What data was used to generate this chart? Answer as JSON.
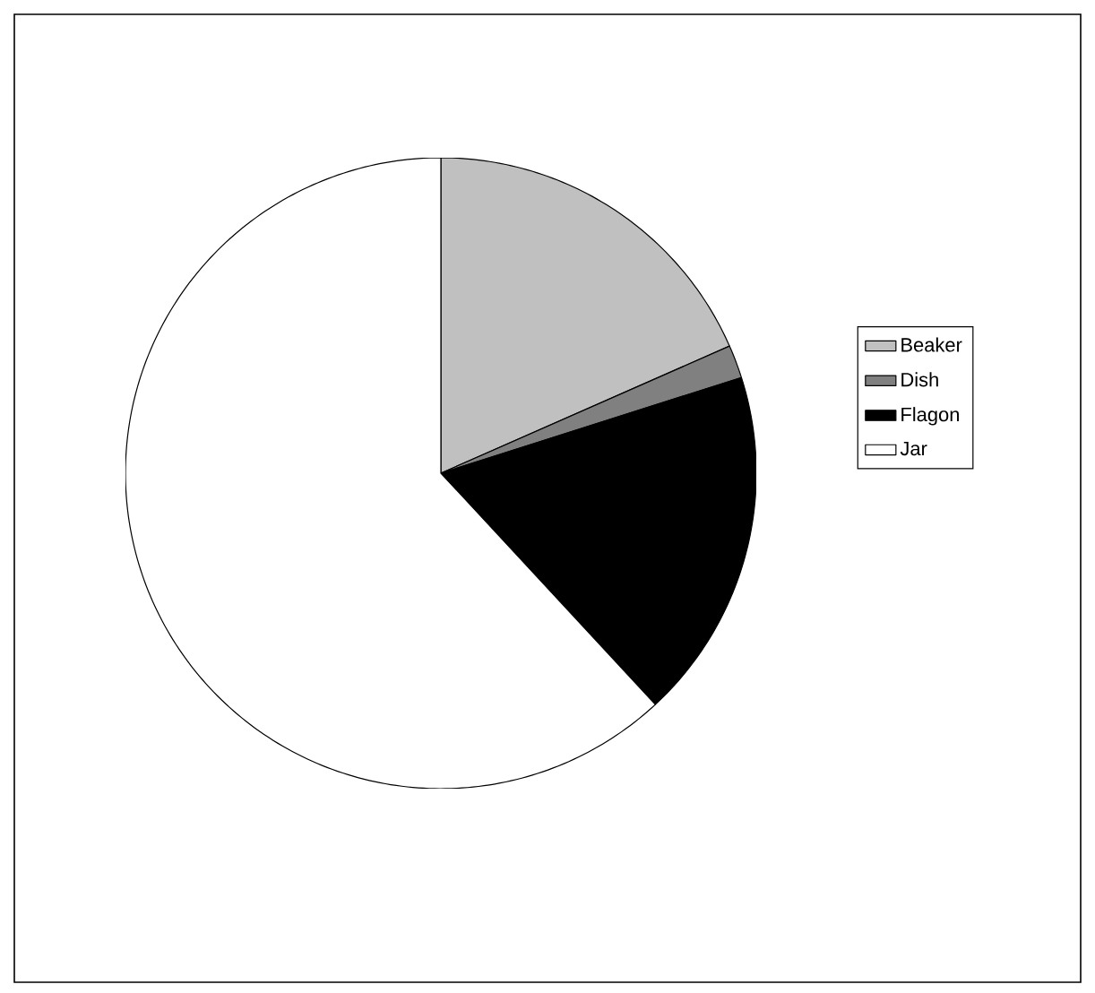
{
  "chart_data": {
    "type": "pie",
    "categories": [
      "Beaker",
      "Dish",
      "Flagon",
      "Jar"
    ],
    "values": [
      18.4,
      1.7,
      18.0,
      61.9
    ],
    "colors": [
      "#c0c0c0",
      "#808080",
      "#000000",
      "#ffffff"
    ],
    "legend": "right"
  }
}
